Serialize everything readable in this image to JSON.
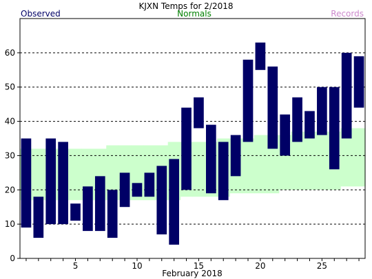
{
  "chart_data": {
    "type": "bar",
    "title": "KJXN Temps for 2/2018",
    "xlabel": "February 2018",
    "ylabel": "",
    "legend": [
      {
        "label": "Observed",
        "color": "#000066",
        "placement": "top-left"
      },
      {
        "label": "Normals",
        "color": "#008000",
        "placement": "top-center"
      },
      {
        "label": "Records",
        "color": "#cc88cc",
        "placement": "top-right"
      }
    ],
    "xlim": [
      0.5,
      28.5
    ],
    "ylim": [
      0,
      70
    ],
    "x_ticks": [
      5,
      10,
      15,
      20,
      25
    ],
    "x_tick_labels": [
      "5",
      "10",
      "15",
      "20",
      "25"
    ],
    "y_ticks": [
      0,
      10,
      20,
      30,
      40,
      50,
      60
    ],
    "y_tick_labels": [
      "0",
      "10",
      "20",
      "30",
      "40",
      "50",
      "60"
    ],
    "grid": "horizontal dashed",
    "days": [
      1,
      2,
      3,
      4,
      5,
      6,
      7,
      8,
      9,
      10,
      11,
      12,
      13,
      14,
      15,
      16,
      17,
      18,
      19,
      20,
      21,
      22,
      23,
      24,
      25,
      26,
      27,
      28
    ],
    "series": [
      {
        "name": "Observed",
        "high": [
          35,
          18,
          35,
          34,
          16,
          21,
          24,
          20,
          25,
          22,
          25,
          27,
          29,
          44,
          47,
          39,
          34,
          36,
          58,
          63,
          56,
          42,
          47,
          43,
          50,
          50,
          60,
          59
        ],
        "low": [
          9,
          6,
          10,
          10,
          11,
          8,
          8,
          6,
          15,
          18,
          18,
          7,
          4,
          20,
          38,
          19,
          17,
          24,
          34,
          55,
          32,
          30,
          34,
          35,
          36,
          26,
          35,
          44
        ]
      },
      {
        "name": "Normals",
        "high": [
          32,
          32,
          32,
          32,
          32,
          32,
          32,
          33,
          33,
          33,
          33,
          33,
          34,
          34,
          34,
          34,
          35,
          35,
          35,
          36,
          36,
          36,
          37,
          37,
          37,
          37,
          38,
          38
        ],
        "low": [
          17,
          17,
          17,
          17,
          17,
          17,
          17,
          17,
          17,
          17,
          17,
          17,
          17,
          18,
          18,
          18,
          18,
          19,
          19,
          19,
          19,
          20,
          20,
          20,
          20,
          20,
          21,
          21
        ]
      }
    ],
    "colors": {
      "observed": "#000066",
      "normals_band": "#ccffcc",
      "normals_text": "#008000",
      "records_text": "#cc88cc",
      "grid": "#000000"
    }
  }
}
